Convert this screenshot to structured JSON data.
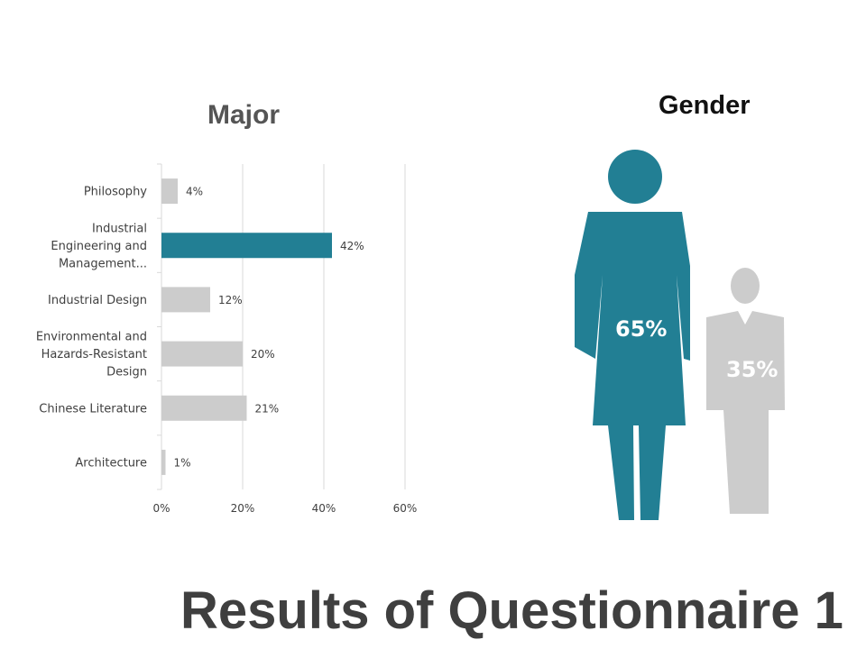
{
  "page_title": "Results of Questionnaire 1",
  "chart_data": [
    {
      "type": "bar",
      "orientation": "horizontal",
      "title": "Major",
      "categories": [
        [
          "Philosophy"
        ],
        [
          "Industrial",
          "Engineering and",
          "Management..."
        ],
        [
          "Industrial Design"
        ],
        [
          "Environmental and",
          "Hazards-Resistant",
          "Design"
        ],
        [
          "Chinese Literature"
        ],
        [
          "Architecture"
        ]
      ],
      "values": [
        4,
        42,
        12,
        20,
        21,
        1
      ],
      "value_labels": [
        "4%",
        "42%",
        "12%",
        "20%",
        "21%",
        "1%"
      ],
      "highlight_index": 1,
      "xlim": [
        0,
        60
      ],
      "x_ticks": [
        0,
        20,
        40,
        60
      ],
      "x_tick_labels": [
        "0%",
        "20%",
        "40%",
        "60%"
      ],
      "grid": true,
      "colors": {
        "bar": "#cccccc",
        "highlight": "#227f94"
      }
    },
    {
      "type": "pictograph",
      "title": "Gender",
      "series": [
        {
          "value": 65,
          "label": "65%",
          "color": "#227f94"
        },
        {
          "value": 35,
          "label": "35%",
          "color": "#cccccc"
        }
      ]
    }
  ]
}
